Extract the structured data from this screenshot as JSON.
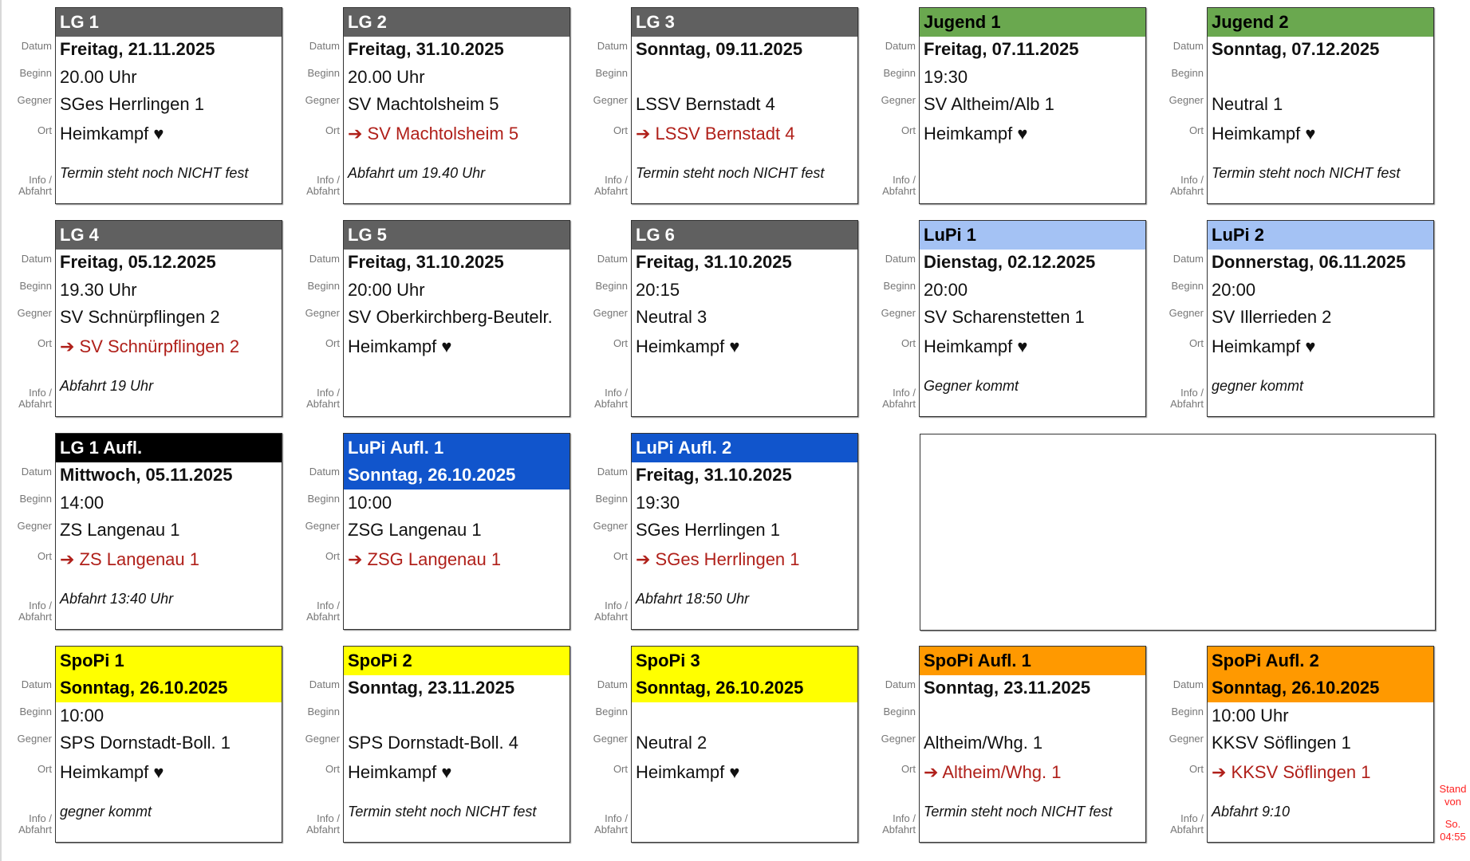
{
  "labels": {
    "date": "Datum",
    "time": "Beginn",
    "opponent": "Gegner",
    "location": "Ort",
    "info_line1": "Info /",
    "info_line2": "Abfahrt"
  },
  "colors": {
    "gray": "#606060",
    "green": "#6aa84f",
    "lightblue": "#a4c2f4",
    "blue": "#1155cc",
    "black": "#000000",
    "yellow": "#ffff00",
    "orange": "#ff9900",
    "away_text": "#b0201a"
  },
  "cards": [
    {
      "title": "LG 1",
      "header_color": "gray",
      "header_text": "#ffffff",
      "date_highlight": false,
      "date": "Freitag, 21.11.2025",
      "time": "20.00 Uhr",
      "opponent": "SGes Herrlingen 1",
      "location": "Heimkampf ♥",
      "away": false,
      "info": "Termin steht noch NICHT fest"
    },
    {
      "title": "LG 2",
      "header_color": "gray",
      "header_text": "#ffffff",
      "date_highlight": false,
      "date": "Freitag, 31.10.2025",
      "time": "20.00 Uhr",
      "opponent": "SV Machtolsheim 5",
      "location": "➔ SV Machtolsheim 5",
      "away": true,
      "info": "Abfahrt um 19.40 Uhr"
    },
    {
      "title": "LG 3",
      "header_color": "gray",
      "header_text": "#ffffff",
      "date_highlight": false,
      "date": "Sonntag, 09.11.2025",
      "time": "",
      "opponent": "LSSV Bernstadt 4",
      "location": "➔ LSSV Bernstadt 4",
      "away": true,
      "info": "Termin steht noch NICHT fest"
    },
    {
      "title": "Jugend 1",
      "header_color": "green",
      "header_text": "#000000",
      "date_highlight": false,
      "date": "Freitag, 07.11.2025",
      "time": "19:30",
      "opponent": "SV Altheim/Alb 1",
      "location": "Heimkampf ♥",
      "away": false,
      "info": ""
    },
    {
      "title": "Jugend 2",
      "header_color": "green",
      "header_text": "#000000",
      "date_highlight": false,
      "date": "Sonntag, 07.12.2025",
      "time": "",
      "opponent": "Neutral 1",
      "location": "Heimkampf ♥",
      "away": false,
      "info": "Termin steht noch NICHT fest"
    },
    {
      "title": "LG 4",
      "header_color": "gray",
      "header_text": "#ffffff",
      "date_highlight": false,
      "date": "Freitag, 05.12.2025",
      "time": "19.30 Uhr",
      "opponent": "SV Schnürpflingen 2",
      "location": "➔ SV Schnürpflingen 2",
      "away": true,
      "info": "Abfahrt 19 Uhr"
    },
    {
      "title": "LG 5",
      "header_color": "gray",
      "header_text": "#ffffff",
      "date_highlight": false,
      "date": "Freitag, 31.10.2025",
      "time": "20:00 Uhr",
      "opponent": "SV Oberkirchberg-Beutelr.",
      "location": "Heimkampf ♥",
      "away": false,
      "info": ""
    },
    {
      "title": "LG 6",
      "header_color": "gray",
      "header_text": "#ffffff",
      "date_highlight": false,
      "date": "Freitag, 31.10.2025",
      "time": "20:15",
      "opponent": "Neutral 3",
      "location": "Heimkampf ♥",
      "away": false,
      "info": ""
    },
    {
      "title": "LuPi 1",
      "header_color": "lightblue",
      "header_text": "#000000",
      "date_highlight": false,
      "date": "Dienstag, 02.12.2025",
      "time": "20:00",
      "opponent": "SV Scharenstetten 1",
      "location": "Heimkampf ♥",
      "away": false,
      "info": "Gegner kommt"
    },
    {
      "title": "LuPi 2",
      "header_color": "lightblue",
      "header_text": "#000000",
      "date_highlight": false,
      "date": "Donnerstag, 06.11.2025",
      "time": "20:00",
      "opponent": "SV Illerrieden 2",
      "location": "Heimkampf ♥",
      "away": false,
      "info": "gegner kommt"
    },
    {
      "title": "LG 1 Aufl.",
      "header_color": "black",
      "header_text": "#ffffff",
      "date_highlight": false,
      "date": "Mittwoch, 05.11.2025",
      "time": "14:00",
      "opponent": "ZS Langenau 1",
      "location": "➔ ZS Langenau 1",
      "away": true,
      "info": "Abfahrt 13:40 Uhr"
    },
    {
      "title": "LuPi Aufl. 1",
      "header_color": "blue",
      "header_text": "#ffffff",
      "date_highlight": true,
      "date": "Sonntag, 26.10.2025",
      "time": "10:00",
      "opponent": "ZSG Langenau 1",
      "location": "➔ ZSG Langenau 1",
      "away": true,
      "info": ""
    },
    {
      "title": "LuPi Aufl. 2",
      "header_color": "blue",
      "header_text": "#ffffff",
      "date_highlight": false,
      "date": "Freitag, 31.10.2025",
      "time": "19:30",
      "opponent": "SGes Herrlingen 1",
      "location": "➔ SGes Herrlingen 1",
      "away": true,
      "info": "Abfahrt 18:50 Uhr"
    },
    {
      "title": "SpoPi 1",
      "header_color": "yellow",
      "header_text": "#000000",
      "date_highlight": true,
      "date": "Sonntag, 26.10.2025",
      "time": "10:00",
      "opponent": "SPS Dornstadt-Boll. 1",
      "location": "Heimkampf ♥",
      "away": false,
      "info": "gegner kommt"
    },
    {
      "title": "SpoPi 2",
      "header_color": "yellow",
      "header_text": "#000000",
      "date_highlight": false,
      "date": "Sonntag, 23.11.2025",
      "time": "",
      "opponent": "SPS Dornstadt-Boll. 4",
      "location": "Heimkampf ♥",
      "away": false,
      "info": "Termin steht noch NICHT fest"
    },
    {
      "title": "SpoPi 3",
      "header_color": "yellow",
      "header_text": "#000000",
      "date_highlight": true,
      "date": "Sonntag, 26.10.2025",
      "time": "",
      "opponent": "Neutral 2",
      "location": "Heimkampf ♥",
      "away": false,
      "info": ""
    },
    {
      "title": "SpoPi Aufl. 1",
      "header_color": "orange",
      "header_text": "#000000",
      "date_highlight": false,
      "date": "Sonntag, 23.11.2025",
      "time": "",
      "opponent": "Altheim/Whg. 1",
      "location": "➔ Altheim/Whg. 1",
      "away": true,
      "info": "Termin steht noch NICHT fest"
    },
    {
      "title": "SpoPi Aufl. 2",
      "header_color": "orange",
      "header_text": "#000000",
      "date_highlight": true,
      "date": "Sonntag, 26.10.2025",
      "time": "10:00 Uhr",
      "opponent": "KKSV Söflingen 1",
      "location": "➔ KKSV Söflingen 1",
      "away": true,
      "info": "Abfahrt 9:10"
    }
  ],
  "stand": {
    "line1": "Stand",
    "line2": "von",
    "line3": "So.",
    "line4": "04:55"
  }
}
